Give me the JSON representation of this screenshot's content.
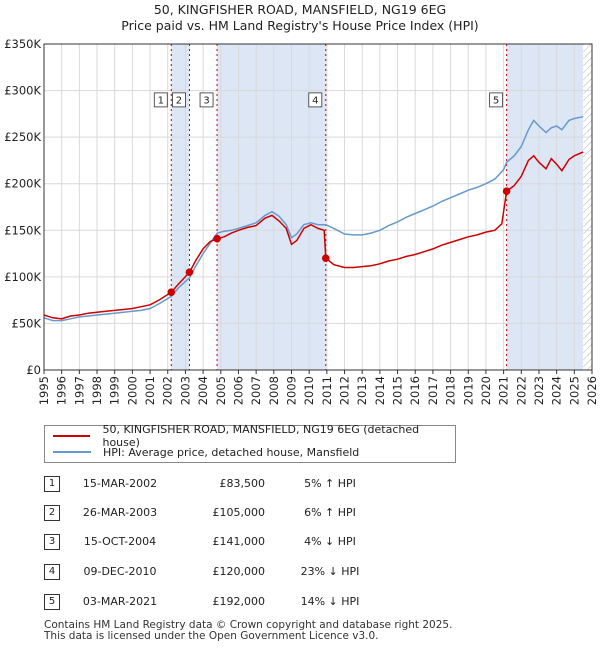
{
  "title": "50, KINGFISHER ROAD, MANSFIELD, NG19 6EG",
  "subtitle": "Price paid vs. HM Land Registry's House Price Index (HPI)",
  "colors": {
    "property": "#cc0000",
    "hpi": "#6699cc",
    "shade": "#dde6f5",
    "grid": "#d9d9d9",
    "vline": "#cc0000"
  },
  "chart_data": {
    "type": "line",
    "xlim": [
      1995,
      2026
    ],
    "ylim": [
      0,
      350000
    ],
    "y_ticks": [
      {
        "value": 0,
        "label": "£0"
      },
      {
        "value": 50000,
        "label": "£50K"
      },
      {
        "value": 100000,
        "label": "£100K"
      },
      {
        "value": 150000,
        "label": "£150K"
      },
      {
        "value": 200000,
        "label": "£200K"
      },
      {
        "value": 250000,
        "label": "£250K"
      },
      {
        "value": 300000,
        "label": "£300K"
      },
      {
        "value": 350000,
        "label": "£350K"
      }
    ],
    "x_ticks": [
      "1995",
      "1996",
      "1997",
      "1998",
      "1999",
      "2000",
      "2001",
      "2002",
      "2003",
      "2004",
      "2005",
      "2006",
      "2007",
      "2008",
      "2009",
      "2010",
      "2011",
      "2012",
      "2013",
      "2014",
      "2015",
      "2016",
      "2017",
      "2018",
      "2019",
      "2020",
      "2021",
      "2022",
      "2023",
      "2024",
      "2025",
      "2026"
    ],
    "shaded_spans": [
      [
        2002.2,
        2003.23
      ],
      [
        2004.79,
        2010.94
      ],
      [
        2021.17,
        2025.5
      ]
    ],
    "series": [
      {
        "name": "50, KINGFISHER ROAD, MANSFIELD, NG19 6EG (detached house)",
        "points": [
          [
            1995.0,
            59000
          ],
          [
            1995.5,
            56000
          ],
          [
            1996.0,
            55000
          ],
          [
            1996.5,
            58000
          ],
          [
            1997.0,
            59000
          ],
          [
            1997.5,
            61000
          ],
          [
            1998.0,
            62000
          ],
          [
            1998.5,
            63000
          ],
          [
            1999.0,
            64000
          ],
          [
            1999.5,
            65000
          ],
          [
            2000.0,
            66000
          ],
          [
            2000.5,
            68000
          ],
          [
            2001.0,
            70000
          ],
          [
            2001.5,
            75000
          ],
          [
            2002.2,
            83500
          ],
          [
            2002.6,
            92000
          ],
          [
            2003.23,
            105000
          ],
          [
            2003.6,
            118000
          ],
          [
            2004.0,
            130000
          ],
          [
            2004.4,
            138000
          ],
          [
            2004.79,
            141000
          ],
          [
            2005.2,
            143000
          ],
          [
            2005.6,
            147000
          ],
          [
            2006.0,
            150000
          ],
          [
            2006.5,
            153000
          ],
          [
            2007.0,
            155000
          ],
          [
            2007.5,
            163000
          ],
          [
            2007.9,
            166000
          ],
          [
            2008.3,
            160000
          ],
          [
            2008.7,
            152000
          ],
          [
            2009.0,
            135000
          ],
          [
            2009.3,
            139000
          ],
          [
            2009.7,
            152000
          ],
          [
            2010.1,
            156000
          ],
          [
            2010.5,
            152000
          ],
          [
            2010.85,
            150000
          ],
          [
            2010.94,
            120000
          ],
          [
            2011.4,
            113000
          ],
          [
            2012.0,
            110000
          ],
          [
            2012.5,
            110000
          ],
          [
            2013.0,
            111000
          ],
          [
            2013.5,
            112000
          ],
          [
            2014.0,
            114000
          ],
          [
            2014.5,
            117000
          ],
          [
            2015.0,
            119000
          ],
          [
            2015.5,
            122000
          ],
          [
            2016.0,
            124000
          ],
          [
            2016.5,
            127000
          ],
          [
            2017.0,
            130000
          ],
          [
            2017.5,
            134000
          ],
          [
            2018.0,
            137000
          ],
          [
            2018.5,
            140000
          ],
          [
            2019.0,
            143000
          ],
          [
            2019.5,
            145000
          ],
          [
            2020.0,
            148000
          ],
          [
            2020.5,
            150000
          ],
          [
            2020.9,
            157000
          ],
          [
            2021.0,
            170000
          ],
          [
            2021.17,
            192000
          ],
          [
            2021.6,
            198000
          ],
          [
            2022.0,
            208000
          ],
          [
            2022.4,
            225000
          ],
          [
            2022.7,
            230000
          ],
          [
            2023.0,
            223000
          ],
          [
            2023.4,
            216000
          ],
          [
            2023.7,
            227000
          ],
          [
            2024.0,
            221000
          ],
          [
            2024.3,
            214000
          ],
          [
            2024.7,
            226000
          ],
          [
            2025.0,
            230000
          ],
          [
            2025.5,
            234000
          ]
        ]
      },
      {
        "name": "HPI: Average price, detached house, Mansfield",
        "points": [
          [
            1995.0,
            56000
          ],
          [
            1995.5,
            53000
          ],
          [
            1996.0,
            53000
          ],
          [
            1996.5,
            55000
          ],
          [
            1997.0,
            57000
          ],
          [
            1997.5,
            58000
          ],
          [
            1998.0,
            59000
          ],
          [
            1998.5,
            60000
          ],
          [
            1999.0,
            61000
          ],
          [
            1999.5,
            62000
          ],
          [
            2000.0,
            63000
          ],
          [
            2000.5,
            64000
          ],
          [
            2001.0,
            66000
          ],
          [
            2001.5,
            71000
          ],
          [
            2002.2,
            79000
          ],
          [
            2002.6,
            88000
          ],
          [
            2003.23,
            99000
          ],
          [
            2003.6,
            112000
          ],
          [
            2004.0,
            125000
          ],
          [
            2004.4,
            136000
          ],
          [
            2004.79,
            147000
          ],
          [
            2005.2,
            149000
          ],
          [
            2005.6,
            150000
          ],
          [
            2006.0,
            152000
          ],
          [
            2006.5,
            155000
          ],
          [
            2007.0,
            158000
          ],
          [
            2007.5,
            166000
          ],
          [
            2007.9,
            170000
          ],
          [
            2008.3,
            165000
          ],
          [
            2008.7,
            156000
          ],
          [
            2009.0,
            142000
          ],
          [
            2009.3,
            146000
          ],
          [
            2009.7,
            156000
          ],
          [
            2010.1,
            158000
          ],
          [
            2010.5,
            156000
          ],
          [
            2010.94,
            156000
          ],
          [
            2011.4,
            152000
          ],
          [
            2012.0,
            146000
          ],
          [
            2012.5,
            145000
          ],
          [
            2013.0,
            145000
          ],
          [
            2013.5,
            147000
          ],
          [
            2014.0,
            150000
          ],
          [
            2014.5,
            155000
          ],
          [
            2015.0,
            159000
          ],
          [
            2015.5,
            164000
          ],
          [
            2016.0,
            168000
          ],
          [
            2016.5,
            172000
          ],
          [
            2017.0,
            176000
          ],
          [
            2017.5,
            181000
          ],
          [
            2018.0,
            185000
          ],
          [
            2018.5,
            189000
          ],
          [
            2019.0,
            193000
          ],
          [
            2019.5,
            196000
          ],
          [
            2020.0,
            200000
          ],
          [
            2020.5,
            205000
          ],
          [
            2021.0,
            215000
          ],
          [
            2021.17,
            223000
          ],
          [
            2021.6,
            230000
          ],
          [
            2022.0,
            240000
          ],
          [
            2022.4,
            258000
          ],
          [
            2022.7,
            268000
          ],
          [
            2023.0,
            262000
          ],
          [
            2023.4,
            255000
          ],
          [
            2023.7,
            260000
          ],
          [
            2024.0,
            262000
          ],
          [
            2024.3,
            258000
          ],
          [
            2024.7,
            268000
          ],
          [
            2025.0,
            270000
          ],
          [
            2025.5,
            272000
          ]
        ]
      }
    ],
    "sales": [
      {
        "label": "1",
        "x": 2002.2,
        "price": 83500
      },
      {
        "label": "2",
        "x": 2003.23,
        "price": 105000
      },
      {
        "label": "3",
        "x": 2004.79,
        "price": 141000
      },
      {
        "label": "4",
        "x": 2010.94,
        "price": 120000
      },
      {
        "label": "5",
        "x": 2021.17,
        "price": 192000
      }
    ],
    "marker_label_value": 290000
  },
  "legend": {
    "property": "50, KINGFISHER ROAD, MANSFIELD, NG19 6EG (detached house)",
    "hpi": "HPI: Average price, detached house, Mansfield"
  },
  "transactions": [
    {
      "num": "1",
      "date": "15-MAR-2002",
      "price": "£83,500",
      "hpi": "5% ↑ HPI"
    },
    {
      "num": "2",
      "date": "26-MAR-2003",
      "price": "£105,000",
      "hpi": "6% ↑ HPI"
    },
    {
      "num": "3",
      "date": "15-OCT-2004",
      "price": "£141,000",
      "hpi": "4% ↓ HPI"
    },
    {
      "num": "4",
      "date": "09-DEC-2010",
      "price": "£120,000",
      "hpi": "23% ↓ HPI"
    },
    {
      "num": "5",
      "date": "03-MAR-2021",
      "price": "£192,000",
      "hpi": "14% ↓ HPI"
    }
  ],
  "footer": {
    "line1": "Contains HM Land Registry data © Crown copyright and database right 2025.",
    "line2": "This data is licensed under the Open Government Licence v3.0."
  }
}
